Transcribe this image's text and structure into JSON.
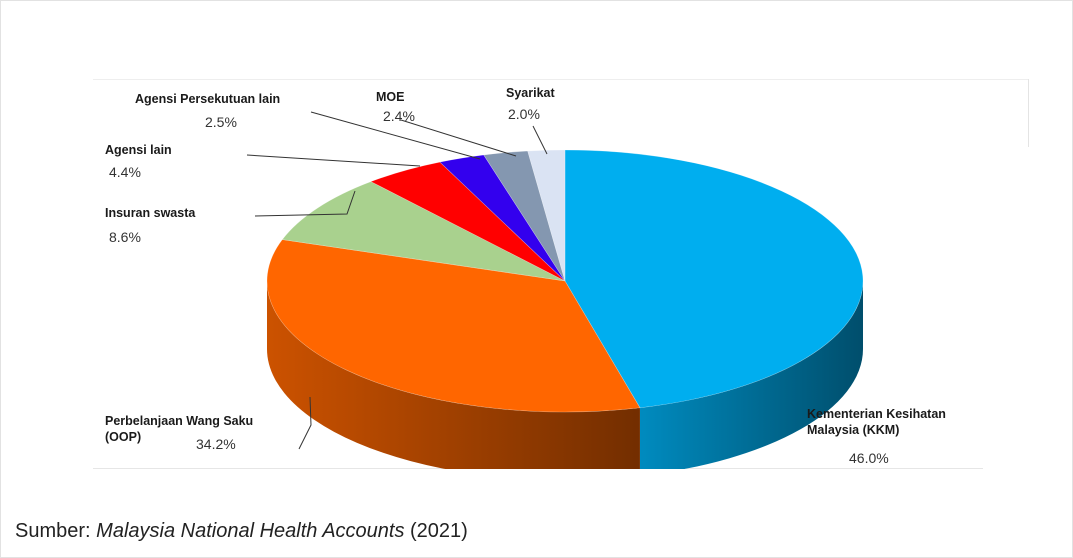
{
  "chart_data": {
    "type": "pie",
    "slices": [
      {
        "label": [
          "Kementerian Kesihatan",
          "Malaysia (KKM)"
        ],
        "value_label": "46.0%",
        "value": 46.0,
        "color": "#00AEEF"
      },
      {
        "label": [
          "Perbelanjaan Wang Saku",
          "(OOP)"
        ],
        "value_label": "34.2%",
        "value": 34.2,
        "color": "#FF6600"
      },
      {
        "label": [
          "Insuran swasta"
        ],
        "value_label": "8.6%",
        "value": 8.6,
        "color": "#A9D18E"
      },
      {
        "label": [
          "Agensi lain"
        ],
        "value_label": "4.4%",
        "value": 4.4,
        "color": "#FF0000"
      },
      {
        "label": [
          "Agensi Persekutuan lain"
        ],
        "value_label": "2.5%",
        "value": 2.5,
        "color": "#3300EE"
      },
      {
        "label": [
          "MOE"
        ],
        "value_label": "2.4%",
        "value": 2.4,
        "color": "#8497B0"
      },
      {
        "label": [
          "Syarikat"
        ],
        "value_label": "2.0%",
        "value": 2.0,
        "color": "#DAE3F3"
      }
    ],
    "style": "3d-perspective"
  },
  "source": {
    "prefix": "Sumber: ",
    "title": "Malaysia National Health Accounts",
    "suffix": " (2021)"
  }
}
